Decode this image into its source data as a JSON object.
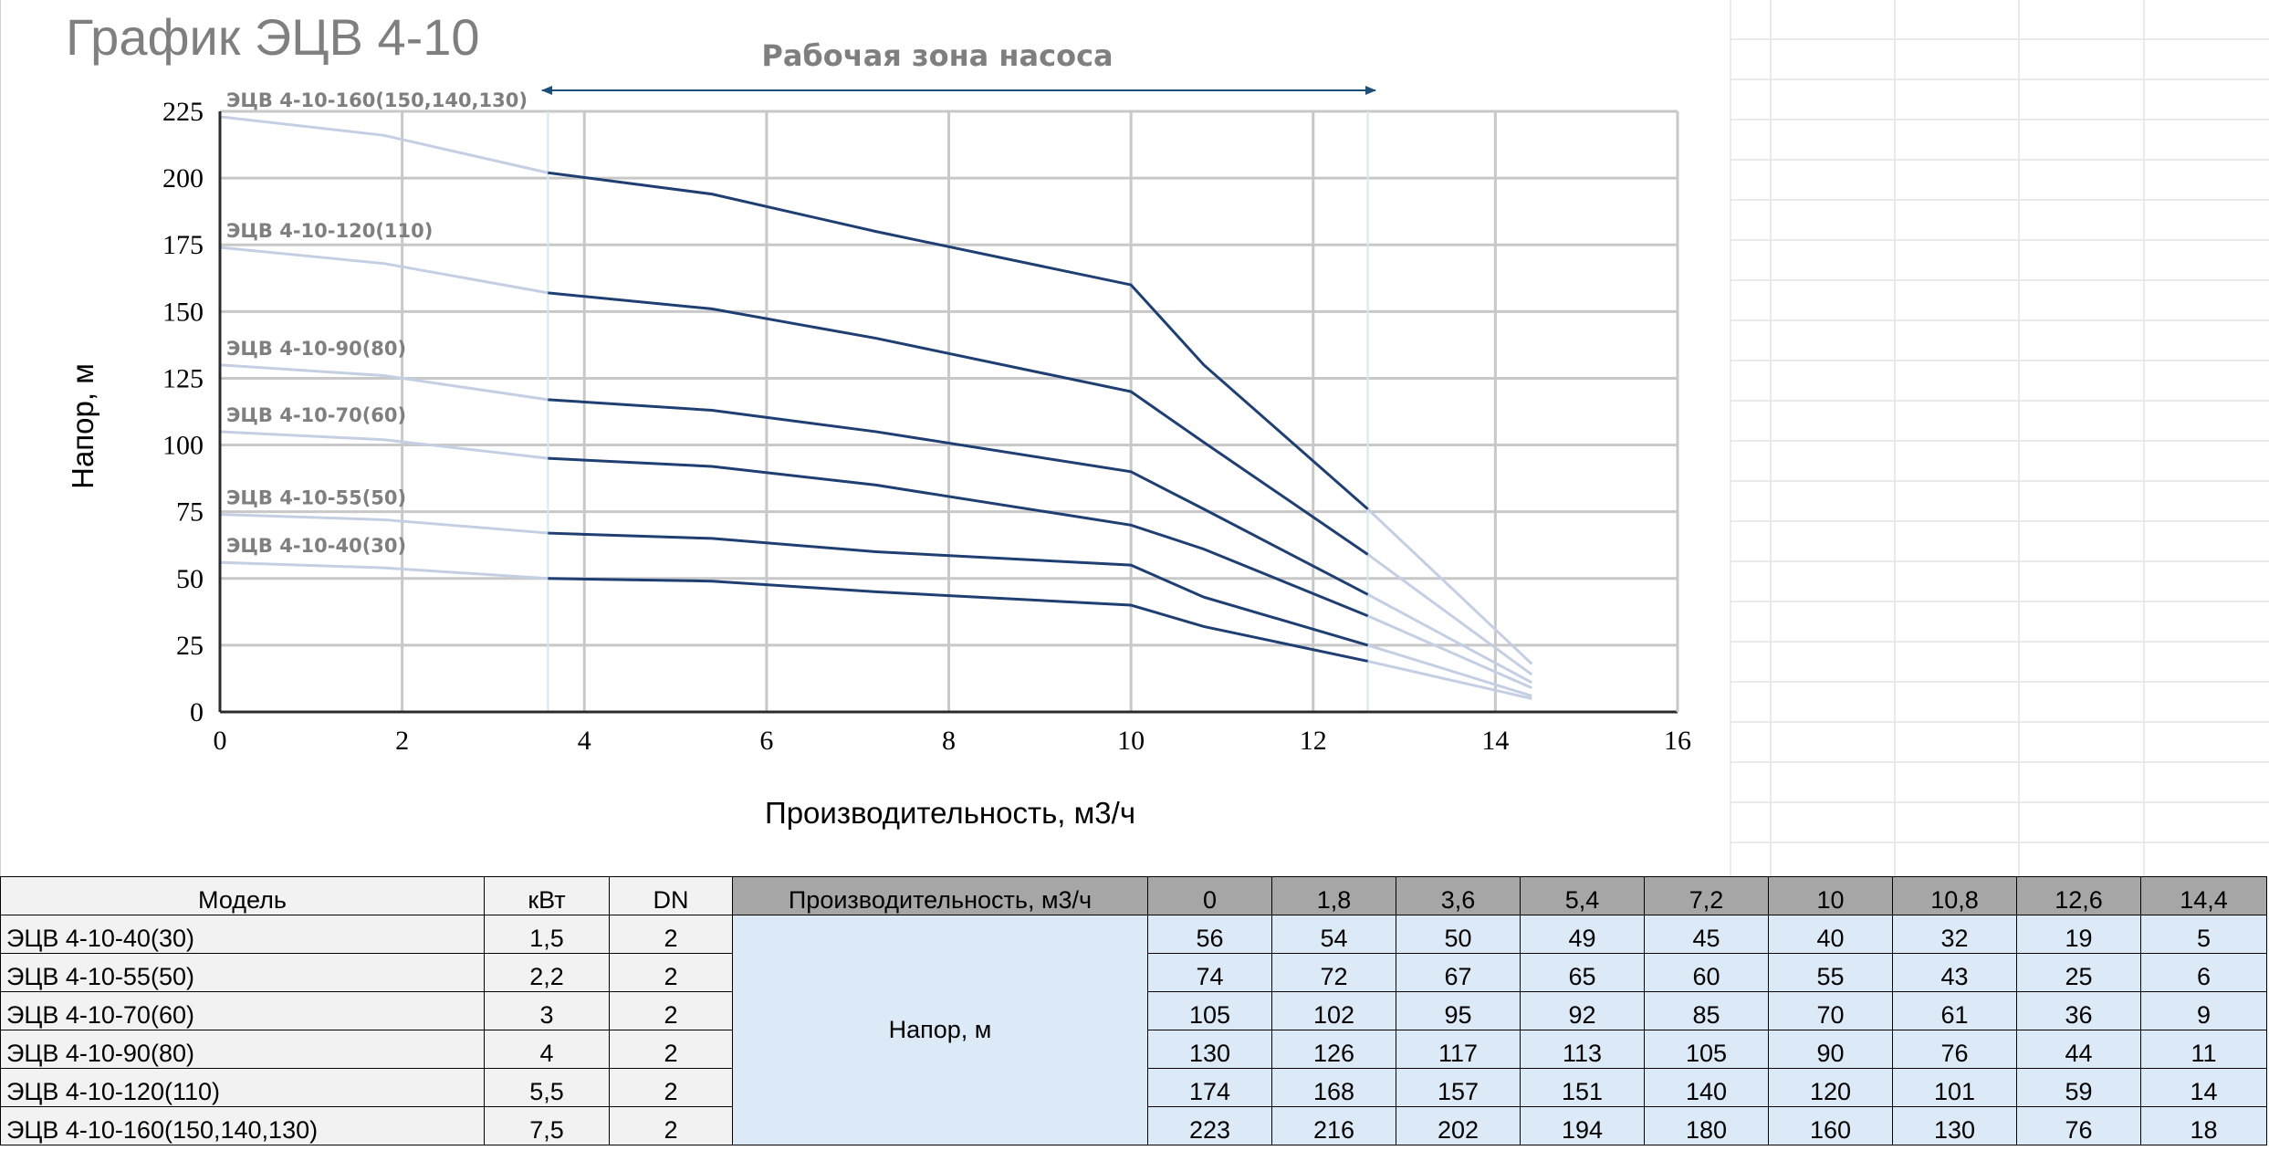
{
  "chart_data": {
    "type": "line",
    "title": "График ЭЦВ 4-10",
    "annotation": "Рабочая зона насоса",
    "xlabel": "Производительность, м3/ч",
    "ylabel": "Напор, м",
    "xlim": [
      0,
      16
    ],
    "ylim": [
      0,
      225
    ],
    "x_ticks": [
      0,
      2,
      4,
      6,
      8,
      10,
      12,
      14,
      16
    ],
    "y_ticks": [
      0,
      25,
      50,
      75,
      100,
      125,
      150,
      175,
      200,
      225
    ],
    "working_zone": [
      3.6,
      12.6
    ],
    "grid": true,
    "x": [
      0,
      1.8,
      3.6,
      5.4,
      7.2,
      10,
      10.8,
      12.6,
      14.4
    ],
    "series": [
      {
        "name": "ЭЦВ 4-10-40(30)",
        "values": [
          56,
          54,
          50,
          49,
          45,
          40,
          32,
          19,
          5
        ]
      },
      {
        "name": "ЭЦВ 4-10-55(50)",
        "values": [
          74,
          72,
          67,
          65,
          60,
          55,
          43,
          25,
          6
        ]
      },
      {
        "name": "ЭЦВ 4-10-70(60)",
        "values": [
          105,
          102,
          95,
          92,
          85,
          70,
          61,
          36,
          9
        ]
      },
      {
        "name": "ЭЦВ 4-10-90(80)",
        "values": [
          130,
          126,
          117,
          113,
          105,
          90,
          76,
          44,
          11
        ]
      },
      {
        "name": "ЭЦВ 4-10-120(110)",
        "values": [
          174,
          168,
          157,
          151,
          140,
          120,
          101,
          59,
          14
        ]
      },
      {
        "name": "ЭЦВ 4-10-160(150,140,130)",
        "values": [
          223,
          216,
          202,
          194,
          180,
          160,
          130,
          76,
          18
        ]
      }
    ],
    "colors": {
      "in_zone": "#1f3f73",
      "out_zone": "#c5cfe3",
      "zone_line": "#1f4e79"
    }
  },
  "table": {
    "headers": {
      "model": "Модель",
      "kw": "кВт",
      "dn": "DN",
      "flow": "Производительность, м3/ч",
      "head": "Напор, м"
    },
    "flow_values": [
      "0",
      "1,8",
      "3,6",
      "5,4",
      "7,2",
      "10",
      "10,8",
      "12,6",
      "14,4"
    ],
    "rows": [
      {
        "model": "ЭЦВ 4-10-40(30)",
        "kw": "1,5",
        "dn": "2",
        "values": [
          "56",
          "54",
          "50",
          "49",
          "45",
          "40",
          "32",
          "19",
          "5"
        ]
      },
      {
        "model": "ЭЦВ 4-10-55(50)",
        "kw": "2,2",
        "dn": "2",
        "values": [
          "74",
          "72",
          "67",
          "65",
          "60",
          "55",
          "43",
          "25",
          "6"
        ]
      },
      {
        "model": "ЭЦВ 4-10-70(60)",
        "kw": "3",
        "dn": "2",
        "values": [
          "105",
          "102",
          "95",
          "92",
          "85",
          "70",
          "61",
          "36",
          "9"
        ]
      },
      {
        "model": "ЭЦВ 4-10-90(80)",
        "kw": "4",
        "dn": "2",
        "values": [
          "130",
          "126",
          "117",
          "113",
          "105",
          "90",
          "76",
          "44",
          "11"
        ]
      },
      {
        "model": "ЭЦВ 4-10-120(110)",
        "kw": "5,5",
        "dn": "2",
        "values": [
          "174",
          "168",
          "157",
          "151",
          "140",
          "120",
          "101",
          "59",
          "14"
        ]
      },
      {
        "model": "ЭЦВ 4-10-160(150,140,130)",
        "kw": "7,5",
        "dn": "2",
        "values": [
          "223",
          "216",
          "202",
          "194",
          "180",
          "160",
          "130",
          "76",
          "18"
        ]
      }
    ]
  }
}
